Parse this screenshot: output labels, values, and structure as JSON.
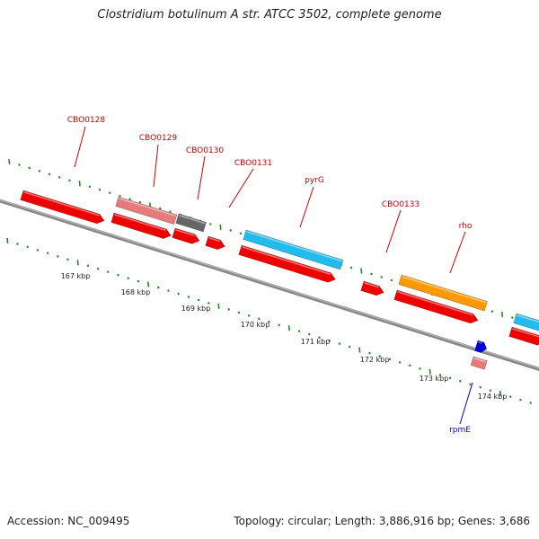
{
  "title": "Clostridium botulinum A str. ATCC 3502, complete genome",
  "footer": {
    "accession": "Accession: NC_009495",
    "topology": "Topology: circular; Length: 3,886,916 bp; Genes: 3,686"
  },
  "colors": {
    "red": "#ee0000",
    "pink": "#e77a7a",
    "gray": "#666666",
    "cyan": "#22bbee",
    "orange": "#ff9900",
    "blue": "#0000dd",
    "tick_green": "#228b22",
    "backbone": "#888888",
    "label_red": "#cc0000",
    "label_blue": "#0000cc"
  },
  "scale_labels": [
    "167 kbp",
    "168 kbp",
    "169 kbp",
    "170 kbp",
    "171 kbp",
    "172 kbp",
    "173 kbp",
    "174 kbp"
  ],
  "gene_labels": [
    {
      "text": "CBO0128",
      "color": "label_red"
    },
    {
      "text": "CBO0129",
      "color": "label_red"
    },
    {
      "text": "CBO0130",
      "color": "label_red"
    },
    {
      "text": "CBO0131",
      "color": "label_red"
    },
    {
      "text": "pyrG",
      "color": "label_red"
    },
    {
      "text": "CBO0133",
      "color": "label_red"
    },
    {
      "text": "rho",
      "color": "label_red"
    },
    {
      "text": "rpmE",
      "color": "label_blue"
    }
  ]
}
